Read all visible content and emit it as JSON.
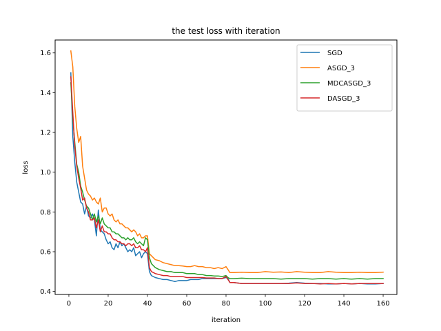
{
  "chart_data": {
    "type": "line",
    "title": "the test loss with iteration",
    "xlabel": "iteration",
    "ylabel": "loss",
    "xlim": [
      -7,
      167
    ],
    "ylim": [
      0.385,
      1.665
    ],
    "xticks": [
      0,
      20,
      40,
      60,
      80,
      100,
      120,
      140,
      160
    ],
    "yticks": [
      0.4,
      0.6,
      0.8,
      1.0,
      1.2,
      1.4,
      1.6
    ],
    "ytick_labels": [
      "0.4",
      "0.6",
      "0.8",
      "1.0",
      "1.2",
      "1.4",
      "1.6"
    ],
    "legend_position": "top-right",
    "grid": false,
    "series": [
      {
        "name": "SGD",
        "color": "#1f77b4",
        "x": [
          1,
          2,
          3,
          4,
          5,
          6,
          7,
          8,
          9,
          10,
          11,
          12,
          13,
          14,
          15,
          16,
          17,
          18,
          19,
          20,
          21,
          22,
          23,
          24,
          25,
          26,
          27,
          28,
          29,
          30,
          31,
          32,
          33,
          34,
          35,
          36,
          37,
          38,
          39,
          40,
          41,
          42,
          44,
          46,
          48,
          50,
          52,
          54,
          56,
          58,
          60,
          62,
          64,
          66,
          68,
          70,
          72,
          74,
          76,
          78,
          80,
          81,
          82,
          84,
          88,
          92,
          96,
          100,
          104,
          108,
          112,
          116,
          120,
          124,
          128,
          132,
          136,
          140,
          144,
          148,
          152,
          156,
          160
        ],
        "y": [
          1.5,
          1.18,
          1.05,
          0.95,
          0.9,
          0.85,
          0.84,
          0.79,
          0.83,
          0.78,
          0.77,
          0.79,
          0.76,
          0.68,
          0.81,
          0.71,
          0.7,
          0.69,
          0.66,
          0.64,
          0.65,
          0.62,
          0.61,
          0.64,
          0.62,
          0.65,
          0.63,
          0.64,
          0.62,
          0.6,
          0.61,
          0.6,
          0.62,
          0.58,
          0.59,
          0.6,
          0.57,
          0.59,
          0.6,
          0.59,
          0.5,
          0.48,
          0.47,
          0.465,
          0.46,
          0.46,
          0.455,
          0.45,
          0.455,
          0.455,
          0.455,
          0.46,
          0.46,
          0.46,
          0.465,
          0.465,
          0.465,
          0.465,
          0.465,
          0.465,
          0.47,
          0.465,
          0.445,
          0.445,
          0.44,
          0.44,
          0.44,
          0.44,
          0.44,
          0.44,
          0.442,
          0.445,
          0.442,
          0.44,
          0.44,
          0.438,
          0.438,
          0.44,
          0.438,
          0.44,
          0.438,
          0.438,
          0.44
        ]
      },
      {
        "name": "ASGD_3",
        "color": "#ff7f0e",
        "x": [
          1,
          2,
          3,
          4,
          5,
          6,
          7,
          8,
          9,
          10,
          11,
          12,
          13,
          14,
          15,
          16,
          17,
          18,
          19,
          20,
          21,
          22,
          23,
          24,
          25,
          26,
          27,
          28,
          29,
          30,
          31,
          32,
          33,
          34,
          35,
          36,
          37,
          38,
          39,
          40,
          41,
          42,
          44,
          46,
          48,
          50,
          52,
          54,
          56,
          58,
          60,
          62,
          64,
          66,
          68,
          70,
          72,
          74,
          76,
          78,
          80,
          81,
          82,
          84,
          88,
          92,
          96,
          100,
          104,
          108,
          112,
          116,
          120,
          124,
          128,
          132,
          136,
          140,
          144,
          148,
          152,
          156,
          160
        ],
        "y": [
          1.61,
          1.53,
          1.33,
          1.22,
          1.15,
          1.18,
          1.03,
          0.97,
          0.91,
          0.89,
          0.88,
          0.86,
          0.87,
          0.85,
          0.84,
          0.87,
          0.8,
          0.82,
          0.82,
          0.79,
          0.78,
          0.79,
          0.76,
          0.75,
          0.76,
          0.74,
          0.74,
          0.73,
          0.72,
          0.72,
          0.71,
          0.7,
          0.71,
          0.7,
          0.68,
          0.69,
          0.67,
          0.67,
          0.68,
          0.68,
          0.59,
          0.58,
          0.56,
          0.555,
          0.545,
          0.54,
          0.535,
          0.53,
          0.53,
          0.528,
          0.525,
          0.525,
          0.53,
          0.525,
          0.525,
          0.52,
          0.52,
          0.515,
          0.52,
          0.515,
          0.525,
          0.51,
          0.495,
          0.495,
          0.497,
          0.495,
          0.495,
          0.5,
          0.497,
          0.498,
          0.495,
          0.5,
          0.497,
          0.495,
          0.495,
          0.5,
          0.497,
          0.495,
          0.495,
          0.497,
          0.495,
          0.495,
          0.497
        ]
      },
      {
        "name": "MDCASGD_3",
        "color": "#2ca02c",
        "x": [
          1,
          2,
          3,
          4,
          5,
          6,
          7,
          8,
          9,
          10,
          11,
          12,
          13,
          14,
          15,
          16,
          17,
          18,
          19,
          20,
          21,
          22,
          23,
          24,
          25,
          26,
          27,
          28,
          29,
          30,
          31,
          32,
          33,
          34,
          35,
          36,
          37,
          38,
          39,
          40,
          41,
          42,
          44,
          46,
          48,
          50,
          52,
          54,
          56,
          58,
          60,
          62,
          64,
          66,
          68,
          70,
          72,
          74,
          76,
          78,
          80,
          81,
          82,
          84,
          88,
          92,
          96,
          100,
          104,
          108,
          112,
          116,
          120,
          124,
          128,
          132,
          136,
          140,
          144,
          148,
          152,
          156,
          160
        ],
        "y": [
          1.45,
          1.27,
          1.15,
          1.04,
          1.0,
          0.93,
          0.9,
          0.86,
          0.83,
          0.82,
          0.79,
          0.76,
          0.79,
          0.75,
          0.78,
          0.74,
          0.77,
          0.74,
          0.73,
          0.72,
          0.72,
          0.7,
          0.7,
          0.69,
          0.69,
          0.68,
          0.67,
          0.67,
          0.66,
          0.67,
          0.66,
          0.66,
          0.67,
          0.65,
          0.64,
          0.65,
          0.64,
          0.63,
          0.67,
          0.66,
          0.57,
          0.54,
          0.52,
          0.51,
          0.505,
          0.5,
          0.5,
          0.495,
          0.495,
          0.495,
          0.49,
          0.49,
          0.49,
          0.485,
          0.485,
          0.48,
          0.48,
          0.478,
          0.478,
          0.475,
          0.48,
          0.47,
          0.465,
          0.465,
          0.467,
          0.465,
          0.465,
          0.465,
          0.465,
          0.462,
          0.465,
          0.465,
          0.465,
          0.462,
          0.465,
          0.465,
          0.462,
          0.465,
          0.462,
          0.465,
          0.462,
          0.465,
          0.465
        ]
      },
      {
        "name": "DASGD_3",
        "color": "#d62728",
        "x": [
          1,
          2,
          3,
          4,
          5,
          6,
          7,
          8,
          9,
          10,
          11,
          12,
          13,
          14,
          15,
          16,
          17,
          18,
          19,
          20,
          21,
          22,
          23,
          24,
          25,
          26,
          27,
          28,
          29,
          30,
          31,
          32,
          33,
          34,
          35,
          36,
          37,
          38,
          39,
          40,
          41,
          42,
          44,
          46,
          48,
          50,
          52,
          54,
          56,
          58,
          60,
          62,
          64,
          66,
          68,
          70,
          72,
          74,
          76,
          78,
          80,
          81,
          82,
          84,
          88,
          92,
          96,
          100,
          104,
          108,
          112,
          116,
          120,
          124,
          128,
          132,
          136,
          140,
          144,
          148,
          152,
          156,
          160
        ],
        "y": [
          1.48,
          1.3,
          1.13,
          1.03,
          0.97,
          0.92,
          0.86,
          0.87,
          0.82,
          0.8,
          0.76,
          0.76,
          0.77,
          0.72,
          0.76,
          0.7,
          0.73,
          0.7,
          0.7,
          0.69,
          0.69,
          0.67,
          0.66,
          0.66,
          0.65,
          0.65,
          0.64,
          0.64,
          0.63,
          0.64,
          0.64,
          0.63,
          0.64,
          0.62,
          0.62,
          0.63,
          0.61,
          0.61,
          0.6,
          0.62,
          0.52,
          0.5,
          0.49,
          0.485,
          0.48,
          0.48,
          0.475,
          0.475,
          0.475,
          0.475,
          0.47,
          0.47,
          0.47,
          0.47,
          0.47,
          0.468,
          0.468,
          0.468,
          0.465,
          0.465,
          0.475,
          0.46,
          0.445,
          0.445,
          0.44,
          0.44,
          0.44,
          0.44,
          0.44,
          0.44,
          0.44,
          0.443,
          0.44,
          0.44,
          0.438,
          0.44,
          0.438,
          0.44,
          0.438,
          0.44,
          0.44,
          0.44,
          0.44
        ]
      }
    ]
  }
}
